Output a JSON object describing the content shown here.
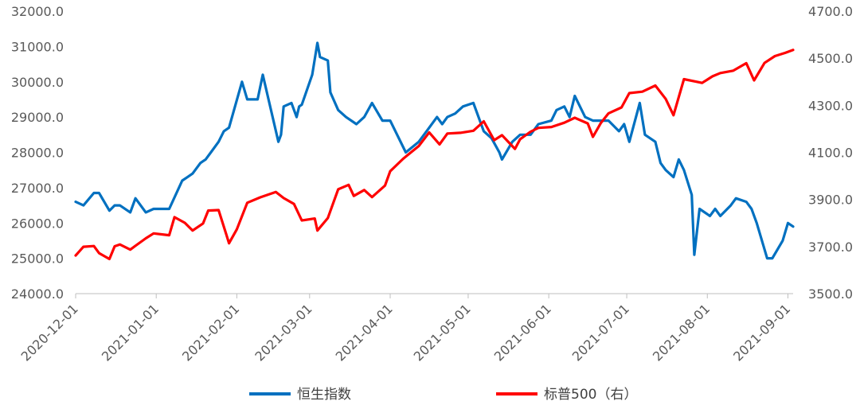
{
  "chart_data": {
    "type": "line",
    "title": "",
    "xlabel": "",
    "grid": false,
    "legend_position": "bottom",
    "x_ticks": [
      "2020-12-01",
      "2021-01-01",
      "2021-02-01",
      "2021-03-01",
      "2021-04-01",
      "2021-05-01",
      "2021-06-01",
      "2021-07-01",
      "2021-08-01",
      "2021-09-01"
    ],
    "x_range": [
      "2020-12-01",
      "2021-09-03"
    ],
    "y_left": {
      "range": [
        24000,
        32000
      ],
      "ticks": [
        "24000.0",
        "25000.0",
        "26000.0",
        "27000.0",
        "28000.0",
        "29000.0",
        "30000.0",
        "31000.0",
        "32000.0"
      ]
    },
    "y_right": {
      "range": [
        3500,
        4700
      ],
      "ticks": [
        "3500.0",
        "3700.0",
        "3900.0",
        "4100.0",
        "4300.0",
        "4500.0",
        "4700.0"
      ]
    },
    "series": [
      {
        "name": "恒生指数",
        "axis": "left",
        "color": "#0070C0",
        "x": [
          "2020-12-01",
          "2020-12-04",
          "2020-12-08",
          "2020-12-10",
          "2020-12-14",
          "2020-12-16",
          "2020-12-18",
          "2020-12-22",
          "2020-12-24",
          "2020-12-28",
          "2020-12-31",
          "2021-01-06",
          "2021-01-11",
          "2021-01-13",
          "2021-01-15",
          "2021-01-18",
          "2021-01-20",
          "2021-01-22",
          "2021-01-25",
          "2021-01-27",
          "2021-01-29",
          "2021-02-03",
          "2021-02-05",
          "2021-02-09",
          "2021-02-11",
          "2021-02-17",
          "2021-02-18",
          "2021-02-19",
          "2021-02-22",
          "2021-02-24",
          "2021-02-25",
          "2021-02-26",
          "2021-03-02",
          "2021-03-04",
          "2021-03-05",
          "2021-03-08",
          "2021-03-09",
          "2021-03-12",
          "2021-03-15",
          "2021-03-19",
          "2021-03-22",
          "2021-03-25",
          "2021-03-29",
          "2021-04-01",
          "2021-04-07",
          "2021-04-12",
          "2021-04-15",
          "2021-04-19",
          "2021-04-21",
          "2021-04-23",
          "2021-04-26",
          "2021-04-29",
          "2021-05-03",
          "2021-05-07",
          "2021-05-10",
          "2021-05-13",
          "2021-05-14",
          "2021-05-18",
          "2021-05-21",
          "2021-05-25",
          "2021-05-28",
          "2021-06-02",
          "2021-06-04",
          "2021-06-07",
          "2021-06-09",
          "2021-06-11",
          "2021-06-15",
          "2021-06-18",
          "2021-06-22",
          "2021-06-24",
          "2021-06-28",
          "2021-06-30",
          "2021-07-02",
          "2021-07-06",
          "2021-07-08",
          "2021-07-12",
          "2021-07-14",
          "2021-07-16",
          "2021-07-19",
          "2021-07-21",
          "2021-07-23",
          "2021-07-26",
          "2021-07-27",
          "2021-07-29",
          "2021-08-02",
          "2021-08-04",
          "2021-08-06",
          "2021-08-10",
          "2021-08-12",
          "2021-08-16",
          "2021-08-18",
          "2021-08-20",
          "2021-08-24",
          "2021-08-26",
          "2021-08-30",
          "2021-09-01",
          "2021-09-03"
        ],
        "values": [
          26600,
          26500,
          26850,
          26850,
          26350,
          26500,
          26500,
          26300,
          26700,
          26300,
          26400,
          26400,
          27200,
          27300,
          27400,
          27700,
          27800,
          28000,
          28300,
          28600,
          28700,
          30000,
          29500,
          29500,
          30200,
          28300,
          28500,
          29300,
          29400,
          29000,
          29300,
          29350,
          30200,
          31100,
          30700,
          30600,
          29700,
          29200,
          29000,
          28800,
          29000,
          29400,
          28900,
          28900,
          28000,
          28300,
          28600,
          29000,
          28800,
          29000,
          29100,
          29300,
          29400,
          28600,
          28400,
          28000,
          27800,
          28300,
          28500,
          28500,
          28800,
          28900,
          29200,
          29300,
          29000,
          29600,
          29000,
          28900,
          28900,
          28900,
          28600,
          28800,
          28300,
          29400,
          28500,
          28300,
          27700,
          27500,
          27300,
          27800,
          27500,
          26800,
          25100,
          26400,
          26200,
          26400,
          26200,
          26500,
          26700,
          26600,
          26400,
          26000,
          25000,
          25000,
          25500,
          26000,
          25900
        ]
      },
      {
        "name": "标普500（右）",
        "axis": "right",
        "color": "#FF0000",
        "x": [
          "2020-12-01",
          "2020-12-04",
          "2020-12-08",
          "2020-12-10",
          "2020-12-14",
          "2020-12-16",
          "2020-12-18",
          "2020-12-22",
          "2020-12-24",
          "2020-12-28",
          "2020-12-31",
          "2021-01-06",
          "2021-01-08",
          "2021-01-12",
          "2021-01-15",
          "2021-01-19",
          "2021-01-21",
          "2021-01-25",
          "2021-01-28",
          "2021-01-29",
          "2021-02-01",
          "2021-02-05",
          "2021-02-10",
          "2021-02-16",
          "2021-02-19",
          "2021-02-23",
          "2021-02-26",
          "2021-03-03",
          "2021-03-04",
          "2021-03-08",
          "2021-03-12",
          "2021-03-16",
          "2021-03-18",
          "2021-03-22",
          "2021-03-25",
          "2021-03-30",
          "2021-04-01",
          "2021-04-06",
          "2021-04-12",
          "2021-04-16",
          "2021-04-20",
          "2021-04-23",
          "2021-04-28",
          "2021-05-03",
          "2021-05-07",
          "2021-05-11",
          "2021-05-14",
          "2021-05-19",
          "2021-05-21",
          "2021-05-25",
          "2021-05-28",
          "2021-06-02",
          "2021-06-07",
          "2021-06-11",
          "2021-06-16",
          "2021-06-18",
          "2021-06-21",
          "2021-06-24",
          "2021-06-29",
          "2021-07-02",
          "2021-07-07",
          "2021-07-12",
          "2021-07-16",
          "2021-07-19",
          "2021-07-23",
          "2021-07-28",
          "2021-07-30",
          "2021-08-03",
          "2021-08-06",
          "2021-08-11",
          "2021-08-16",
          "2021-08-19",
          "2021-08-23",
          "2021-08-27",
          "2021-08-31",
          "2021-09-03"
        ],
        "values": [
          3662,
          3699,
          3702,
          3672,
          3647,
          3701,
          3709,
          3687,
          3703,
          3735,
          3756,
          3748,
          3825,
          3801,
          3768,
          3798,
          3853,
          3855,
          3750,
          3714,
          3773,
          3886,
          3909,
          3932,
          3906,
          3881,
          3811,
          3819,
          3768,
          3821,
          3943,
          3962,
          3915,
          3940,
          3910,
          3959,
          4020,
          4073,
          4127,
          4185,
          4134,
          4180,
          4183,
          4192,
          4232,
          4152,
          4173,
          4115,
          4156,
          4188,
          4204,
          4208,
          4226,
          4247,
          4223,
          4166,
          4224,
          4266,
          4291,
          4352,
          4358,
          4384,
          4327,
          4258,
          4411,
          4400,
          4395,
          4423,
          4437,
          4447,
          4479,
          4406,
          4480,
          4509,
          4523,
          4535
        ]
      }
    ]
  }
}
